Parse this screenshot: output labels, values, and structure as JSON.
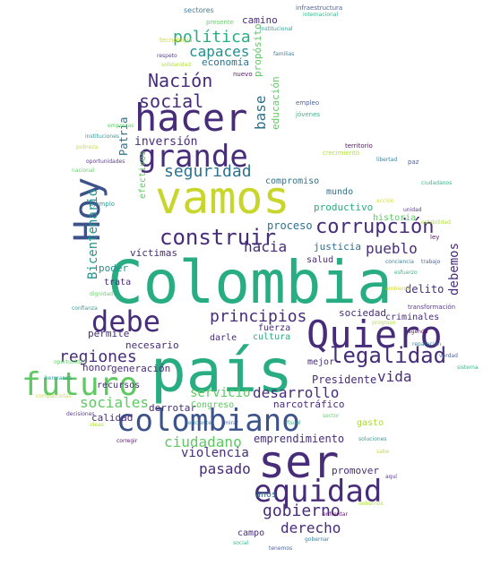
{
  "words": [
    "Colombia",
    "país",
    "vamos",
    "ser",
    "Quiero",
    "colombiano",
    "hacer",
    "futuro",
    "equidad",
    "grande",
    "debe",
    "Hoy",
    "legalidad",
    "corrupción",
    "construir",
    "seguridad",
    "Nación",
    "social",
    "política",
    "capaces",
    "regiones",
    "principios",
    "ciudadano",
    "gobierno",
    "desarrollo",
    "pasado",
    "hacia",
    "pueblo",
    "derecho",
    "sociales",
    "Bicentenario",
    "vida",
    "debemos",
    "servicio",
    "violencia",
    "base",
    "Patria",
    "inversión",
    "economía",
    "camino",
    "emprendimiento",
    "Presidente",
    "delito",
    "sociedad",
    "proceso",
    "justicia",
    "productivo",
    "mundo",
    "víctimas",
    "permite",
    "necesario",
    "generación",
    "recursos",
    "calidad",
    "derrotar",
    "Congreso",
    "narcotráfico",
    "cultura",
    "fuerza",
    "salud",
    "mejor",
    "honor",
    "poder",
    "trata",
    "darle",
    "educación",
    "compromiso",
    "historia",
    "propósito",
    "efectivos",
    "anos",
    "campo",
    "promover",
    "gasto",
    "criminales",
    "sectores",
    "infraestructura",
    "internacional",
    "presente",
    "institucional",
    "tecnología",
    "respeto",
    "solidaridad",
    "nuevo",
    "familias",
    "empleo",
    "jóvenes",
    "empresas",
    "instituciones",
    "pobreza",
    "oportunidades",
    "crecimiento",
    "territorio",
    "libertad",
    "paz",
    "ciudadanos",
    "nacional",
    "ejemplo",
    "acción",
    "unidad",
    "estabilidad",
    "ley",
    "conciencia",
    "trabajo",
    "esfuerzo",
    "dignidad",
    "confianza",
    "ambiente",
    "transformación",
    "progreso",
    "agenda",
    "reparación",
    "verdad",
    "sistema",
    "oportunidad",
    "hermanos",
    "compatriotas",
    "decisiones",
    "ideas",
    "corregir",
    "eficiente",
    "mirar",
    "fiscal",
    "sector",
    "soluciones",
    "sabe",
    "aquí",
    "debemos",
    "enfrentar",
    "gobernar",
    "tenemos",
    "social"
  ]
}
